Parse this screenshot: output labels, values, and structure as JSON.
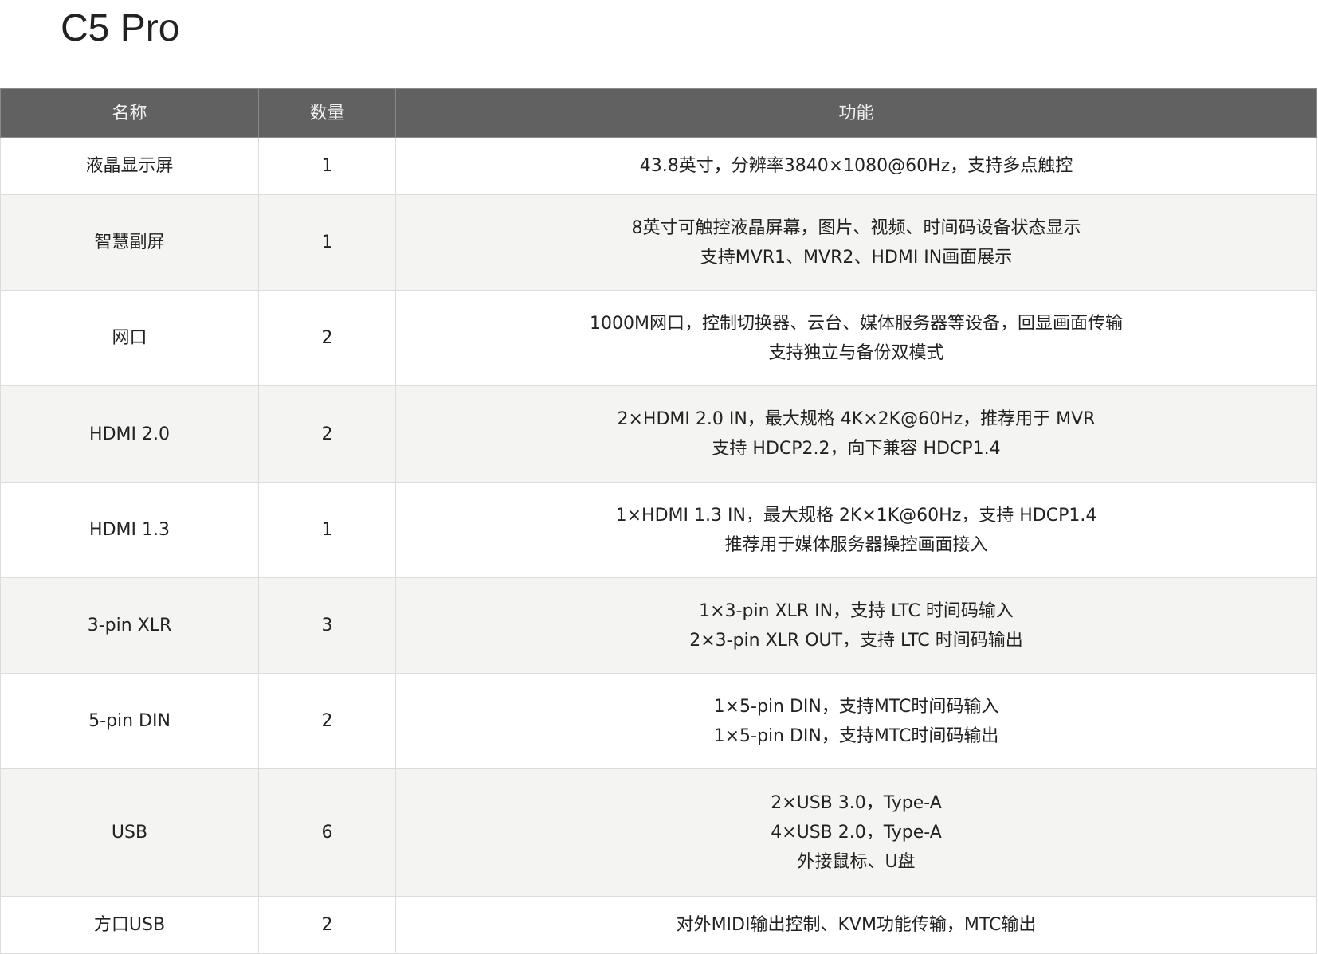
{
  "title": "C5 Pro",
  "table": {
    "headers": [
      "名称",
      "数量",
      "功能"
    ],
    "rows": [
      {
        "name": "液晶显示屏",
        "qty": "1",
        "func": [
          "43.8英寸，分辨率3840×1080@60Hz，支持多点触控"
        ]
      },
      {
        "name": "智慧副屏",
        "qty": "1",
        "func": [
          "8英寸可触控液晶屏幕，图片、视频、时间码设备状态显示",
          "支持MVR1、MVR2、HDMI IN画面展示"
        ]
      },
      {
        "name": "网口",
        "qty": "2",
        "func": [
          "1000M网口，控制切换器、云台、媒体服务器等设备，回显画面传输",
          "支持独立与备份双模式"
        ]
      },
      {
        "name": "HDMI 2.0",
        "qty": "2",
        "func": [
          "2×HDMI 2.0 IN，最大规格 4K×2K@60Hz，推荐用于 MVR",
          "支持 HDCP2.2，向下兼容 HDCP1.4"
        ]
      },
      {
        "name": "HDMI 1.3",
        "qty": "1",
        "func": [
          "1×HDMI 1.3 IN，最大规格 2K×1K@60Hz，支持 HDCP1.4",
          "推荐用于媒体服务器操控画面接入"
        ]
      },
      {
        "name": "3-pin XLR",
        "qty": "3",
        "func": [
          "1×3-pin XLR IN，支持 LTC 时间码输入",
          "2×3-pin XLR OUT，支持 LTC 时间码输出"
        ]
      },
      {
        "name": "5-pin DIN",
        "qty": "2",
        "func": [
          "1×5-pin DIN，支持MTC时间码输入",
          "1×5-pin DIN，支持MTC时间码输出"
        ]
      },
      {
        "name": "USB",
        "qty": "6",
        "func": [
          "2×USB 3.0，Type-A",
          "4×USB 2.0，Type-A",
          "外接鼠标、U盘"
        ]
      },
      {
        "name": "方口USB",
        "qty": "2",
        "func": [
          "对外MIDI输出控制、KVM功能传输，MTC输出"
        ]
      }
    ]
  }
}
